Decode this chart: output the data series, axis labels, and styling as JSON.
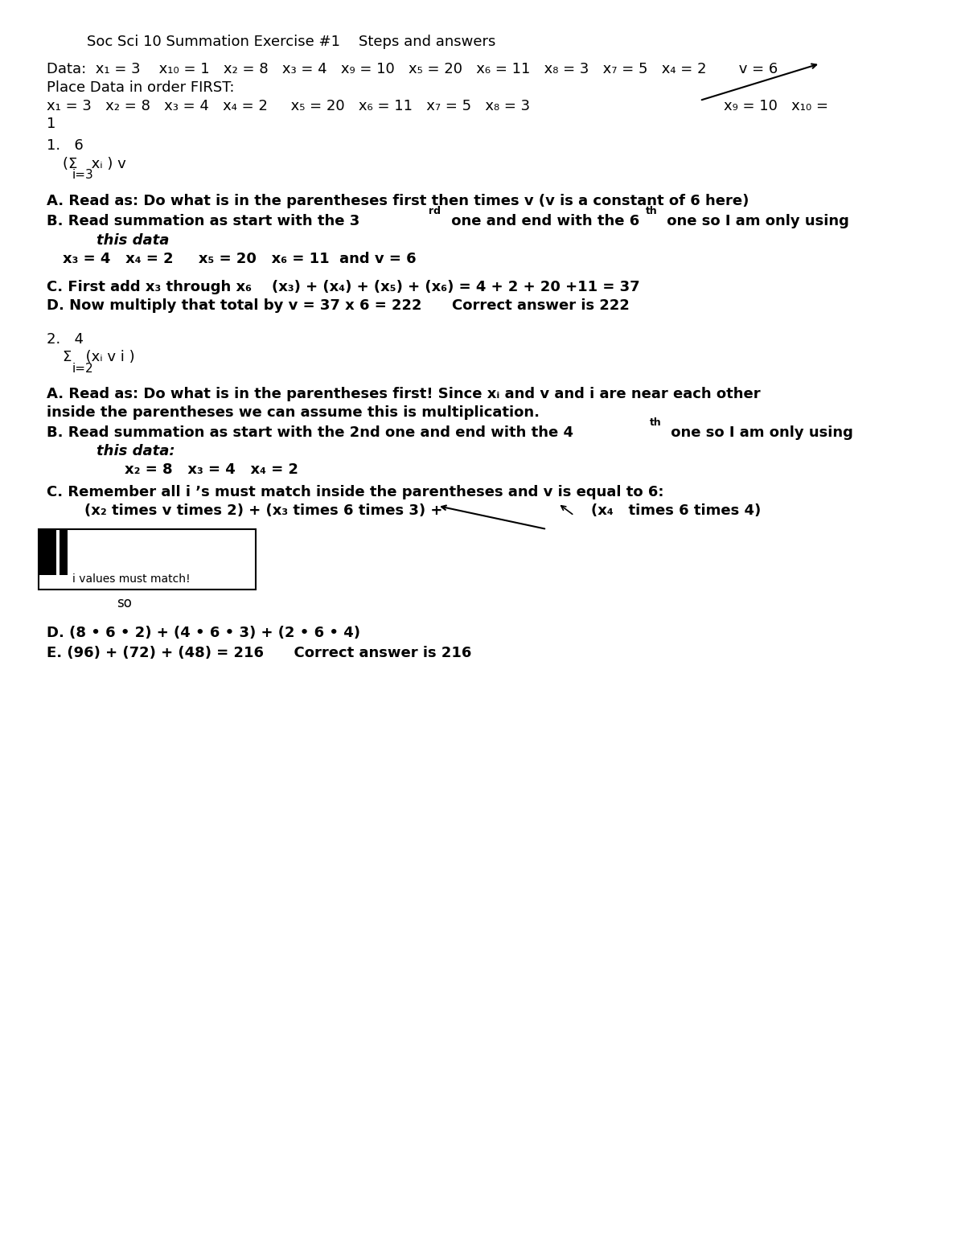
{
  "bg_color": "#ffffff",
  "title": "Soc Sci 10 Summation Exercise #1    Steps and answers",
  "data_line": "Data:  x₁ = 3    x₁₀ = 1   x₂ = 8   x₃ = 4   x₉ = 10   x₅ = 20   x₆ = 11   x₈ = 3   x₇ = 5   x₄ = 2       v = 6",
  "place_line": "Place Data in order FIRST:",
  "ordered_line1": "x₁ = 3   x₂ = 8   x₃ = 4   x₄ = 2     x₅ = 20   x₆ = 11   x₇ = 5   x₈ = 3",
  "ordered_line1b": "x₉ = 10   x₁₀ =",
  "ordered_line2": "1"
}
